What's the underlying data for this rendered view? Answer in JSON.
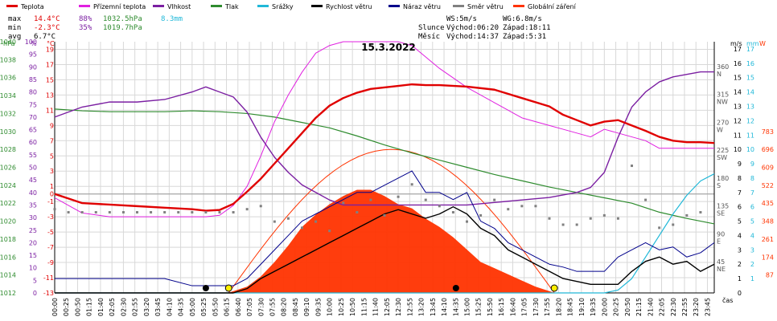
{
  "colors": {
    "teplota": "#e00000",
    "prizemni": "#e020e0",
    "vlhkost": "#7b1fa2",
    "tlak": "#2e8b2e",
    "srazky": "#20b8d8",
    "rychlost": "#000000",
    "naraz": "#00008b",
    "smer": "#808080",
    "zareni": "#ff3300",
    "grid": "#d8d8d8"
  },
  "legend": [
    {
      "label": "Teplota",
      "color": "#e00000"
    },
    {
      "label": "Přízemní teplota",
      "color": "#e020e0"
    },
    {
      "label": "Vlhkost",
      "color": "#7b1fa2"
    },
    {
      "label": "Tlak",
      "color": "#2e8b2e"
    },
    {
      "label": "Srážky",
      "color": "#20b8d8"
    },
    {
      "label": "Rychlost větru",
      "color": "#000000"
    },
    {
      "label": "Náraz větru",
      "color": "#00008b"
    },
    {
      "label": "Směr větru",
      "color": "#808080"
    },
    {
      "label": "Globální záření",
      "color": "#ff3300"
    }
  ],
  "stats": {
    "max_label": "max",
    "max_temp": "14.4°C",
    "max_hum": "88%",
    "max_press": "1032.5hPa",
    "rain": "8.3mm",
    "min_label": "min",
    "min_temp": "-2.3°C",
    "min_hum": "35%",
    "min_press": "1019.7hPa",
    "avg_label": "avg",
    "avg_temp": "6.7°C"
  },
  "wind_info": {
    "ws": "WS:5m/s",
    "wg": "WG:6.8m/s"
  },
  "sun": {
    "label": "Slunce",
    "rise": "Východ:06:20",
    "set": "Západ:18:11"
  },
  "moon": {
    "label": "Měsíc",
    "rise": "Východ:14:37",
    "set": "Západ:5:31"
  },
  "chart_data": {
    "type": "line",
    "title": "15.3.2022",
    "xlabel": "čas",
    "axis_units": {
      "press": "hPa",
      "hum": "%",
      "temp": "°C",
      "wind": "m/s",
      "rain": "mm",
      "rad": "W"
    },
    "x_ticks": [
      "00:00",
      "00:25",
      "00:50",
      "01:15",
      "01:40",
      "02:05",
      "02:30",
      "02:55",
      "03:20",
      "03:45",
      "04:10",
      "04:35",
      "05:00",
      "05:25",
      "05:50",
      "06:15",
      "06:40",
      "07:05",
      "07:30",
      "07:55",
      "08:20",
      "08:45",
      "09:10",
      "09:35",
      "10:00",
      "10:25",
      "10:50",
      "11:15",
      "11:40",
      "12:05",
      "12:30",
      "12:55",
      "13:20",
      "13:45",
      "14:10",
      "14:35",
      "15:00",
      "15:25",
      "15:50",
      "16:15",
      "16:40",
      "17:05",
      "17:30",
      "17:55",
      "18:20",
      "18:45",
      "19:10",
      "19:35",
      "20:00",
      "20:25",
      "20:50",
      "21:15",
      "21:40",
      "22:05",
      "22:30",
      "22:55",
      "23:20",
      "23:45"
    ],
    "y_axes": {
      "press": {
        "ticks": [
          "1012",
          "1014",
          "1016",
          "1018",
          "1020",
          "1022",
          "1024",
          "1026",
          "1028",
          "1030",
          "1032",
          "1034",
          "1036",
          "1038",
          "1040"
        ],
        "range": [
          1012,
          1040
        ]
      },
      "hum": {
        "ticks": [
          "0",
          "5",
          "10",
          "15",
          "20",
          "25",
          "30",
          "35",
          "40",
          "45",
          "50",
          "55",
          "60",
          "65",
          "70",
          "75",
          "80",
          "85",
          "90",
          "95",
          "100"
        ],
        "range": [
          0,
          100
        ]
      },
      "temp": {
        "ticks": [
          "-13",
          "-11",
          "-9",
          "-7",
          "-5",
          "-3",
          "-1",
          "0",
          "1",
          "3",
          "5",
          "7",
          "9",
          "11",
          "13",
          "15",
          "17",
          "19"
        ],
        "range": [
          -13,
          20
        ]
      },
      "dir": {
        "ticks": [
          "45",
          "90",
          "135",
          "180",
          "225",
          "270",
          "315",
          "360"
        ],
        "labels": [
          "NE",
          "E",
          "SE",
          "S",
          "SW",
          "W",
          "NW",
          "N"
        ],
        "range": [
          0,
          405
        ]
      },
      "wind": {
        "ticks": [
          "0",
          "1",
          "2",
          "3",
          "4",
          "5",
          "6",
          "7",
          "8",
          "9",
          "10",
          "11",
          "12",
          "13",
          "14",
          "15",
          "16",
          "17"
        ],
        "range": [
          0,
          17.5
        ]
      },
      "rain": {
        "ticks": [
          "1",
          "2",
          "3",
          "4",
          "5",
          "6",
          "7",
          "8",
          "9",
          "10",
          "11",
          "12",
          "13",
          "14",
          "15",
          "16",
          "17"
        ],
        "range": [
          0,
          17.5
        ]
      },
      "rad": {
        "ticks": [
          "87",
          "174",
          "261",
          "348",
          "435",
          "522",
          "609",
          "696",
          "783"
        ],
        "range": [
          0,
          1218
        ]
      }
    },
    "series": [
      {
        "name": "Teplota",
        "axis": "temp",
        "x": [
          0,
          0.5,
          1,
          2,
          3,
          4,
          5,
          5.5,
          6,
          6.5,
          7,
          7.5,
          8,
          8.5,
          9,
          9.5,
          10,
          10.5,
          11,
          11.5,
          12,
          12.5,
          13,
          13.5,
          14,
          15,
          16,
          17,
          18,
          18.5,
          19,
          19.5,
          20,
          20.5,
          21,
          21.5,
          22,
          22.5,
          23,
          23.5,
          24
        ],
        "y": [
          0,
          -0.6,
          -1.2,
          -1.4,
          -1.6,
          -1.8,
          -2.0,
          -2.2,
          -2.1,
          -1.3,
          0.3,
          2.0,
          4.0,
          6.0,
          8.0,
          10.0,
          11.6,
          12.6,
          13.3,
          13.8,
          14.0,
          14.2,
          14.4,
          14.3,
          14.3,
          14.1,
          13.7,
          12.6,
          11.5,
          10.4,
          9.7,
          9.0,
          9.5,
          9.7,
          9.0,
          8.3,
          7.5,
          7.0,
          6.8,
          6.8,
          6.7
        ]
      },
      {
        "name": "Přízemní teplota",
        "axis": "temp",
        "x": [
          0,
          0.5,
          1,
          2,
          3,
          4,
          5,
          5.5,
          6,
          6.5,
          7,
          7.5,
          8,
          8.5,
          9,
          9.5,
          10,
          10.5,
          11,
          11.5,
          12,
          12.5,
          13,
          13.5,
          14,
          15,
          16,
          16.5,
          17,
          18,
          18.5,
          19,
          19.5,
          20,
          20.5,
          21,
          21.5,
          22,
          22.5,
          23,
          23.5,
          24
        ],
        "y": [
          -0.5,
          -1.5,
          -2.5,
          -3.0,
          -3.0,
          -3.0,
          -3.0,
          -3.0,
          -2.8,
          -1.5,
          1.0,
          5.0,
          9.5,
          13.0,
          16.0,
          18.5,
          19.5,
          20.0,
          20.0,
          20.0,
          20.0,
          20.0,
          19.5,
          18.0,
          16.5,
          14.0,
          12.0,
          11.0,
          10.0,
          9.0,
          8.5,
          8.0,
          7.5,
          8.5,
          8.0,
          7.5,
          7.0,
          6.0,
          6.0,
          6.0,
          6.0,
          6.0
        ]
      },
      {
        "name": "Vlhkost",
        "axis": "hum",
        "x": [
          0,
          0.5,
          1,
          2,
          3,
          4,
          5,
          5.5,
          6,
          6.5,
          7,
          7.5,
          8,
          8.5,
          9,
          9.5,
          10,
          10.5,
          11,
          11.5,
          12,
          12.5,
          13,
          13.5,
          14,
          15,
          16,
          17,
          18,
          18.5,
          19,
          19.5,
          20,
          20.5,
          21,
          21.5,
          22,
          22.5,
          23,
          23.5,
          24
        ],
        "y": [
          70,
          72,
          74,
          76,
          76,
          77,
          80,
          82,
          80,
          78,
          72,
          62,
          54,
          48,
          43,
          40,
          37,
          35,
          35,
          35,
          35,
          35,
          35,
          35,
          35,
          35,
          36,
          37,
          38,
          39,
          40,
          42,
          48,
          62,
          74,
          80,
          84,
          86,
          87,
          88,
          88
        ]
      },
      {
        "name": "Tlak",
        "axis": "press",
        "x": [
          0,
          1,
          2,
          3,
          4,
          5,
          6,
          7,
          8,
          9,
          10,
          11,
          12,
          13,
          14,
          15,
          16,
          17,
          18,
          19,
          20,
          21,
          22,
          23,
          24
        ],
        "y": [
          1032.5,
          1032.3,
          1032.2,
          1032.2,
          1032.2,
          1032.3,
          1032.2,
          1032.0,
          1031.6,
          1031.0,
          1030.4,
          1029.5,
          1028.5,
          1027.6,
          1026.8,
          1026.0,
          1025.2,
          1024.5,
          1023.8,
          1023.2,
          1022.6,
          1022.0,
          1021.0,
          1020.3,
          1019.7
        ]
      },
      {
        "name": "Srážky",
        "axis": "rain",
        "x": [
          0,
          20,
          20.5,
          21,
          21.5,
          22,
          22.5,
          23,
          23.5,
          24
        ],
        "y": [
          0,
          0,
          0.2,
          1,
          2.5,
          4,
          5.5,
          6.8,
          7.8,
          8.3
        ]
      },
      {
        "name": "Rychlost větru",
        "axis": "wind",
        "x": [
          0,
          2,
          4,
          6,
          6.5,
          7,
          7.5,
          8,
          8.5,
          9,
          9.5,
          10,
          10.5,
          11,
          11.5,
          12,
          12.5,
          13,
          13.5,
          14,
          14.5,
          15,
          15.5,
          16,
          16.5,
          17,
          17.5,
          18,
          18.5,
          19,
          19.5,
          20,
          20.5,
          21,
          21.5,
          22,
          22.5,
          23,
          23.5,
          24
        ],
        "y": [
          0,
          0,
          0,
          0,
          0,
          0.3,
          1,
          1.5,
          2,
          2.5,
          3,
          3.5,
          4,
          4.5,
          5,
          5.5,
          5.8,
          5.5,
          5.2,
          5.5,
          6,
          5.5,
          4.5,
          4,
          3,
          2.5,
          2,
          1.5,
          1,
          0.8,
          0.6,
          0.6,
          0.6,
          1.5,
          2.2,
          2.5,
          2.0,
          2.2,
          1.5,
          2.0
        ]
      },
      {
        "name": "Náraz větru",
        "axis": "wind",
        "x": [
          0,
          2,
          4,
          5,
          6,
          6.5,
          7,
          7.5,
          8,
          8.5,
          9,
          9.5,
          10,
          10.5,
          11,
          11.5,
          12,
          12.5,
          13,
          13.5,
          14,
          14.5,
          15,
          15.5,
          16,
          16.5,
          17,
          17.5,
          18,
          18.5,
          19,
          19.5,
          20,
          20.5,
          21,
          21.5,
          22,
          22.5,
          23,
          23.5,
          24
        ],
        "y": [
          1,
          1,
          1,
          0.5,
          0.5,
          0.5,
          1,
          2,
          3,
          4,
          5,
          5.5,
          6,
          6.5,
          7,
          7,
          7.5,
          8,
          8.5,
          7,
          7,
          6.5,
          7,
          5,
          4.5,
          3.5,
          3,
          2.5,
          2,
          1.8,
          1.5,
          1.5,
          1.5,
          2.5,
          3,
          3.5,
          3,
          3.2,
          2.5,
          2.8,
          3.5
        ]
      }
    ],
    "radiation": {
      "name": "Globální záření",
      "axis": "rad",
      "x": [
        6.3,
        7,
        7.5,
        8,
        8.5,
        9,
        9.5,
        10,
        10.5,
        11,
        11.5,
        12,
        12.5,
        13,
        13.5,
        14,
        14.5,
        15,
        15.5,
        16,
        16.5,
        17,
        17.5,
        18.2
      ],
      "y": [
        0,
        30,
        80,
        150,
        230,
        320,
        380,
        430,
        470,
        500,
        500,
        470,
        430,
        410,
        360,
        320,
        270,
        210,
        150,
        120,
        90,
        60,
        30,
        0
      ]
    },
    "direction": {
      "name": "Směr větru",
      "axis": "dir",
      "x": [
        0,
        0.5,
        1,
        1.5,
        2,
        2.5,
        3,
        3.5,
        4,
        4.5,
        5,
        5.5,
        6,
        6.5,
        7,
        7.5,
        8,
        8.5,
        9,
        9.5,
        10,
        10.5,
        11,
        11.5,
        12,
        12.5,
        13,
        13.5,
        14,
        14.5,
        15,
        15.5,
        16,
        16.5,
        17,
        17.5,
        18,
        18.5,
        19,
        19.5,
        20,
        20.5,
        21,
        21.5,
        22,
        22.5,
        23,
        23.5
      ],
      "y": [
        135,
        130,
        130,
        130,
        130,
        130,
        130,
        130,
        130,
        130,
        130,
        130,
        130,
        130,
        135,
        140,
        115,
        120,
        105,
        115,
        100,
        145,
        130,
        150,
        125,
        155,
        175,
        150,
        140,
        130,
        115,
        125,
        150,
        135,
        140,
        140,
        120,
        110,
        110,
        120,
        125,
        120,
        205,
        150,
        105,
        110,
        125,
        130
      ]
    },
    "moon_rise": 14.6,
    "moon_set": 5.5,
    "sun_rise": 6.33,
    "sun_set": 18.18
  }
}
